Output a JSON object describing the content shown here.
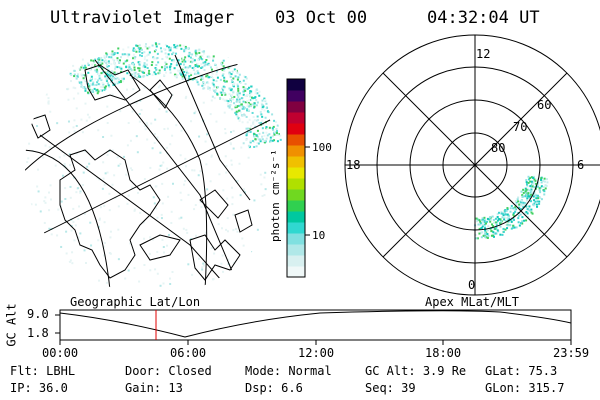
{
  "header": {
    "title": "Ultraviolet Imager",
    "date": "03 Oct 00",
    "time": "04:32:04 UT"
  },
  "colorbar": {
    "unit_label": "photon cm⁻²s⁻¹",
    "ticks": [
      "100",
      "10"
    ],
    "colors": [
      "#f0f8f8",
      "#d8f0f0",
      "#b0e8e8",
      "#80e0e0",
      "#30d8d0",
      "#00c8a0",
      "#30d050",
      "#70d820",
      "#b0e000",
      "#e8e800",
      "#f0c000",
      "#f09000",
      "#e85000",
      "#e00010",
      "#c00030",
      "#800040",
      "#400060",
      "#100040"
    ]
  },
  "polar": {
    "mlt_labels": {
      "top": "12",
      "left": "18",
      "right": "6",
      "bottom": "0"
    },
    "lat_labels": [
      "60",
      "70",
      "80"
    ]
  },
  "timeline": {
    "left_label": "Geographic Lat/Lon",
    "right_label": "Apex MLat/MLT",
    "y_axis": "GC Alt",
    "y_ticks": [
      "9.0",
      "1.8"
    ],
    "x_ticks": [
      "00:00",
      "06:00",
      "12:00",
      "18:00",
      "23:59"
    ],
    "marker_color": "#e00000"
  },
  "info": {
    "row1": [
      {
        "key": "Flt:",
        "value": "LBHL"
      },
      {
        "key": "Door:",
        "value": "Closed"
      },
      {
        "key": "Mode:",
        "value": "Normal"
      },
      {
        "key": "GC Alt:",
        "value": "3.9 Re"
      },
      {
        "key": "GLat:",
        "value": "75.3"
      }
    ],
    "row2": [
      {
        "key": "IP:",
        "value": "36.0"
      },
      {
        "key": "Gain:",
        "value": "13"
      },
      {
        "key": "Dsp:",
        "value": "6.6"
      },
      {
        "key": "Seq:",
        "value": "39"
      },
      {
        "key": "GLon:",
        "value": "315.7"
      }
    ]
  }
}
